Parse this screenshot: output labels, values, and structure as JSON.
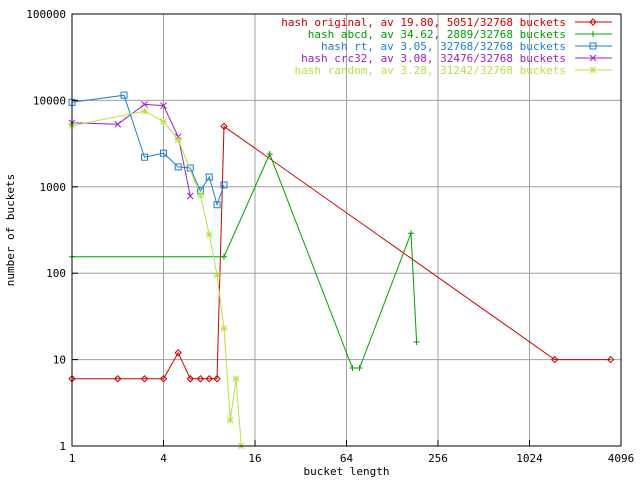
{
  "chart_data": {
    "type": "line",
    "title": "",
    "xlabel": "bucket length",
    "ylabel": "number of buckets",
    "x_scale": "log2",
    "y_scale": "log10",
    "xlim": [
      1,
      4096
    ],
    "ylim": [
      1,
      100000
    ],
    "grid": true,
    "legend_position": "top-right",
    "x_ticks": [
      {
        "value": 1,
        "label": "1"
      },
      {
        "value": 4,
        "label": "4"
      },
      {
        "value": 16,
        "label": "16"
      },
      {
        "value": 64,
        "label": "64"
      },
      {
        "value": 256,
        "label": "256"
      },
      {
        "value": 1024,
        "label": "1024"
      },
      {
        "value": 4096,
        "label": "4096"
      }
    ],
    "y_ticks": [
      {
        "value": 1,
        "label": "1"
      },
      {
        "value": 10,
        "label": "10"
      },
      {
        "value": 100,
        "label": "100"
      },
      {
        "value": 1000,
        "label": "1000"
      },
      {
        "value": 10000,
        "label": "10000"
      },
      {
        "value": 100000,
        "label": "100000"
      }
    ],
    "series": [
      {
        "name": "hash original, av 19.80, 5051/32768 buckets",
        "color": "#cc0000",
        "marker": "diamond",
        "x": [
          1,
          2,
          3,
          4,
          5,
          6,
          7,
          8,
          9,
          10,
          1500,
          3500
        ],
        "y": [
          6,
          6,
          6,
          6,
          12,
          6,
          6,
          6,
          6,
          5000,
          10,
          10
        ]
      },
      {
        "name": "hash abcd, av 34.62, 2889/32768 buckets",
        "color": "#00a000",
        "marker": "plus",
        "x": [
          1,
          10,
          20,
          70,
          78,
          170,
          185
        ],
        "y": [
          155,
          155,
          2400,
          8,
          8,
          290,
          16
        ]
      },
      {
        "name": "hash rt, av 3.05, 32768/32768 buckets",
        "color": "#1e7fcf",
        "marker": "square",
        "x": [
          1,
          2.2,
          3,
          4,
          5,
          6,
          7,
          8,
          9,
          10
        ],
        "y": [
          9500,
          11500,
          2200,
          2450,
          1700,
          1650,
          900,
          1300,
          620,
          1050
        ]
      },
      {
        "name": "hash crc32, av 3.08, 32476/32768 buckets",
        "color": "#a020c0",
        "marker": "cross",
        "x": [
          1,
          2,
          3,
          4,
          5,
          6
        ],
        "y": [
          5500,
          5300,
          9000,
          8700,
          3800,
          780
        ]
      },
      {
        "name": "hash random, av 3.28, 31242/32768 buckets",
        "color": "#b8e04a",
        "marker": "star",
        "x": [
          1,
          3,
          4,
          5,
          7,
          8,
          9,
          10,
          11,
          12,
          13
        ],
        "y": [
          5100,
          7500,
          5700,
          3500,
          800,
          280,
          95,
          23,
          2,
          6,
          1
        ]
      }
    ]
  }
}
